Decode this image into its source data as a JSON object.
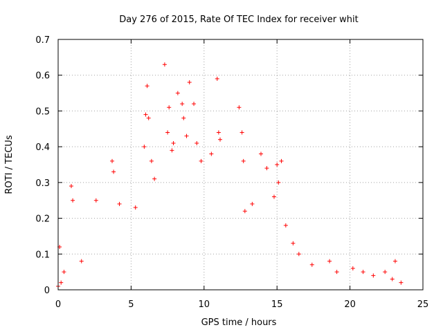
{
  "chart_data": {
    "type": "scatter",
    "title": "Day 276 of 2015, Rate Of TEC Index for receiver whit",
    "xlabel": "GPS time / hours",
    "ylabel": "ROTI / TECUs",
    "xlim": [
      0,
      25
    ],
    "ylim": [
      0,
      0.7
    ],
    "xticks": [
      "0",
      "5",
      "10",
      "15",
      "20",
      "25"
    ],
    "yticks": [
      "0",
      "0.1",
      "0.2",
      "0.3",
      "0.4",
      "0.5",
      "0.6",
      "0.7"
    ],
    "grid": true,
    "marker": "+",
    "color": "#ff0000",
    "series": [
      {
        "x": [
          0.0,
          0.1,
          0.2,
          0.4,
          0.9,
          1.0,
          1.6,
          2.6,
          3.7,
          3.8,
          4.2,
          5.3,
          5.9,
          6.0,
          6.1,
          6.2,
          6.4,
          6.6,
          7.3,
          7.5,
          7.6,
          7.8,
          7.9,
          8.2,
          8.5,
          8.6,
          8.8,
          9.0,
          9.3,
          9.5,
          9.8,
          10.5,
          10.9,
          11.0,
          11.1,
          12.4,
          12.6,
          12.7,
          12.8,
          13.3,
          13.9,
          14.3,
          14.8,
          15.0,
          15.1,
          15.3,
          15.6,
          16.1,
          16.5,
          17.4,
          18.6,
          19.1,
          20.2,
          20.9,
          21.6,
          22.4,
          22.9,
          23.1,
          23.5
        ],
        "y": [
          0.01,
          0.12,
          0.02,
          0.05,
          0.29,
          0.25,
          0.08,
          0.25,
          0.36,
          0.33,
          0.24,
          0.23,
          0.4,
          0.49,
          0.57,
          0.48,
          0.36,
          0.31,
          0.63,
          0.44,
          0.51,
          0.39,
          0.41,
          0.55,
          0.52,
          0.48,
          0.43,
          0.58,
          0.52,
          0.41,
          0.36,
          0.38,
          0.59,
          0.44,
          0.42,
          0.51,
          0.44,
          0.36,
          0.22,
          0.24,
          0.38,
          0.34,
          0.26,
          0.35,
          0.3,
          0.36,
          0.18,
          0.13,
          0.1,
          0.07,
          0.08,
          0.05,
          0.06,
          0.05,
          0.04,
          0.05,
          0.03,
          0.08,
          0.02
        ]
      }
    ]
  }
}
